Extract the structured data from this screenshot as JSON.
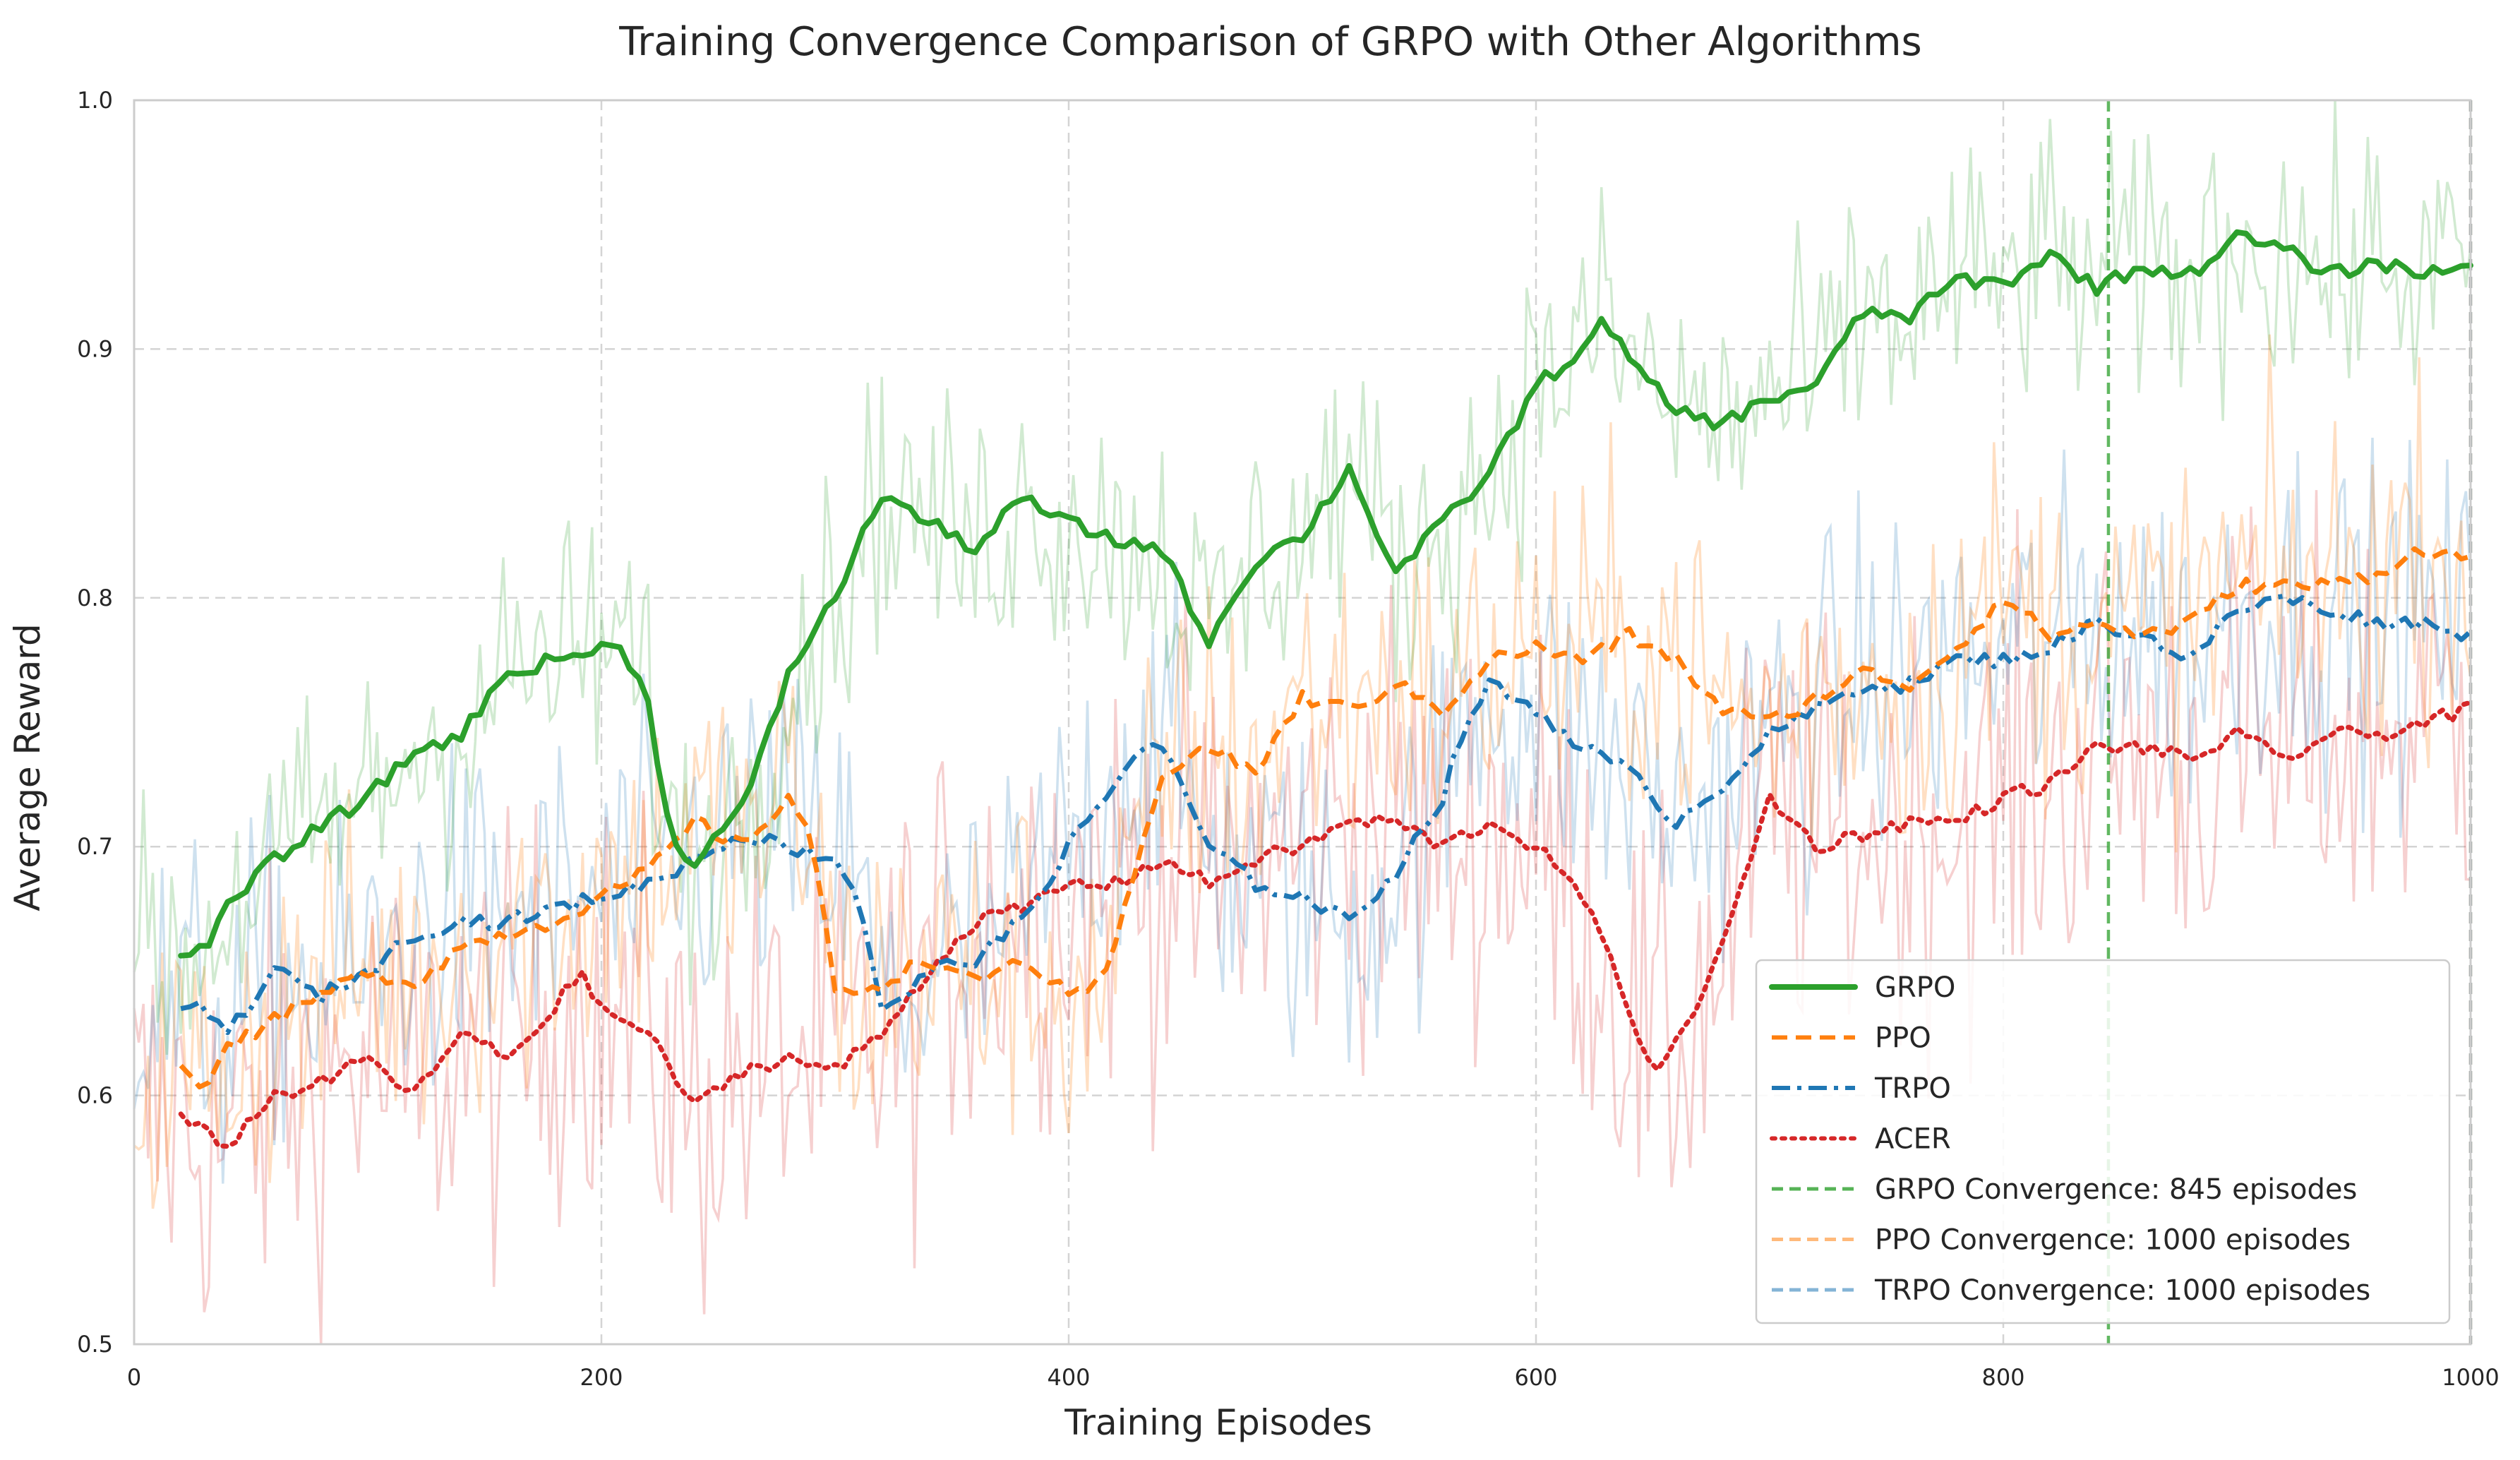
{
  "chart_data": {
    "type": "line",
    "title": "Training Convergence Comparison of GRPO with Other Algorithms",
    "xlabel": "Training Episodes",
    "ylabel": "Average Reward",
    "xlim": [
      0,
      1000
    ],
    "ylim": [
      0.5,
      1.0
    ],
    "xticks": [
      "0",
      "200",
      "400",
      "600",
      "800",
      "1000"
    ],
    "yticks": [
      "0.5",
      "0.6",
      "0.7",
      "0.8",
      "0.9",
      "1.0"
    ],
    "grid": true,
    "legend_position": "bottom-right",
    "series": [
      {
        "name": "GRPO",
        "color": "#2ca02c",
        "style": "solid",
        "x": [
          20,
          30,
          40,
          60,
          80,
          100,
          120,
          140,
          160,
          180,
          200,
          210,
          220,
          230,
          240,
          260,
          270,
          280,
          300,
          320,
          340,
          360,
          380,
          400,
          420,
          440,
          450,
          460,
          480,
          500,
          520,
          540,
          560,
          580,
          600,
          620,
          630,
          640,
          660,
          680,
          700,
          720,
          740,
          760,
          780,
          800,
          820,
          840,
          860,
          880,
          900,
          920,
          940,
          960,
          980,
          1000
        ],
        "y": [
          0.656,
          0.66,
          0.675,
          0.695,
          0.708,
          0.72,
          0.738,
          0.745,
          0.77,
          0.775,
          0.78,
          0.778,
          0.76,
          0.7,
          0.695,
          0.715,
          0.74,
          0.77,
          0.8,
          0.842,
          0.83,
          0.82,
          0.84,
          0.83,
          0.823,
          0.82,
          0.8,
          0.783,
          0.815,
          0.825,
          0.852,
          0.81,
          0.83,
          0.85,
          0.885,
          0.9,
          0.912,
          0.895,
          0.875,
          0.87,
          0.88,
          0.886,
          0.915,
          0.913,
          0.928,
          0.926,
          0.938,
          0.925,
          0.933,
          0.93,
          0.945,
          0.94,
          0.93,
          0.935,
          0.93,
          0.935
        ]
      },
      {
        "name": "PPO",
        "color": "#ff7f0e",
        "style": "dashed",
        "x": [
          20,
          30,
          40,
          60,
          80,
          100,
          120,
          140,
          160,
          180,
          200,
          220,
          240,
          260,
          280,
          290,
          300,
          320,
          340,
          360,
          380,
          400,
          410,
          420,
          430,
          440,
          460,
          480,
          500,
          520,
          540,
          560,
          580,
          600,
          620,
          640,
          660,
          680,
          700,
          720,
          740,
          760,
          780,
          800,
          820,
          840,
          860,
          880,
          900,
          920,
          940,
          960,
          980,
          1000
        ],
        "y": [
          0.61,
          0.605,
          0.62,
          0.63,
          0.64,
          0.65,
          0.645,
          0.66,
          0.665,
          0.67,
          0.68,
          0.69,
          0.71,
          0.7,
          0.72,
          0.705,
          0.64,
          0.645,
          0.655,
          0.645,
          0.655,
          0.64,
          0.64,
          0.66,
          0.695,
          0.73,
          0.74,
          0.73,
          0.76,
          0.755,
          0.765,
          0.755,
          0.775,
          0.78,
          0.775,
          0.785,
          0.775,
          0.755,
          0.75,
          0.76,
          0.77,
          0.765,
          0.78,
          0.8,
          0.785,
          0.79,
          0.785,
          0.79,
          0.805,
          0.805,
          0.805,
          0.81,
          0.82,
          0.815
        ]
      },
      {
        "name": "TRPO",
        "color": "#1f77b4",
        "style": "dashdot",
        "x": [
          20,
          30,
          40,
          60,
          80,
          100,
          120,
          140,
          160,
          180,
          200,
          220,
          240,
          260,
          280,
          300,
          310,
          320,
          330,
          340,
          360,
          380,
          400,
          420,
          430,
          440,
          460,
          480,
          500,
          520,
          540,
          560,
          570,
          580,
          600,
          620,
          640,
          660,
          680,
          700,
          720,
          740,
          760,
          780,
          800,
          820,
          840,
          860,
          880,
          900,
          920,
          940,
          960,
          980,
          1000
        ],
        "y": [
          0.635,
          0.635,
          0.625,
          0.65,
          0.64,
          0.65,
          0.665,
          0.67,
          0.67,
          0.675,
          0.68,
          0.685,
          0.695,
          0.705,
          0.7,
          0.695,
          0.68,
          0.635,
          0.64,
          0.65,
          0.655,
          0.67,
          0.7,
          0.725,
          0.74,
          0.74,
          0.7,
          0.685,
          0.68,
          0.67,
          0.69,
          0.72,
          0.75,
          0.765,
          0.755,
          0.74,
          0.73,
          0.71,
          0.725,
          0.745,
          0.755,
          0.765,
          0.765,
          0.775,
          0.775,
          0.78,
          0.79,
          0.785,
          0.775,
          0.795,
          0.8,
          0.795,
          0.79,
          0.79,
          0.785
        ]
      },
      {
        "name": "ACER",
        "color": "#d62728",
        "style": "dotted",
        "x": [
          20,
          30,
          40,
          60,
          80,
          100,
          120,
          140,
          160,
          180,
          190,
          200,
          220,
          240,
          260,
          280,
          300,
          320,
          340,
          360,
          380,
          400,
          420,
          440,
          460,
          480,
          500,
          520,
          540,
          560,
          580,
          600,
          620,
          640,
          650,
          660,
          680,
          700,
          720,
          740,
          760,
          780,
          800,
          820,
          840,
          860,
          880,
          900,
          920,
          940,
          960,
          980,
          1000
        ],
        "y": [
          0.59,
          0.585,
          0.58,
          0.6,
          0.605,
          0.615,
          0.6,
          0.625,
          0.615,
          0.635,
          0.65,
          0.635,
          0.625,
          0.595,
          0.61,
          0.615,
          0.61,
          0.625,
          0.65,
          0.67,
          0.675,
          0.685,
          0.685,
          0.695,
          0.685,
          0.695,
          0.7,
          0.71,
          0.71,
          0.7,
          0.71,
          0.7,
          0.68,
          0.635,
          0.61,
          0.62,
          0.66,
          0.72,
          0.7,
          0.705,
          0.71,
          0.71,
          0.72,
          0.725,
          0.74,
          0.74,
          0.735,
          0.745,
          0.735,
          0.745,
          0.745,
          0.75,
          0.755
        ]
      }
    ],
    "convergence_lines": [
      {
        "name": "GRPO Convergence: 845 episodes",
        "x": 845,
        "color": "#2ca02c"
      },
      {
        "name": "PPO Convergence: 1000 episodes",
        "x": 1000,
        "color": "#ff7f0e"
      },
      {
        "name": "TRPO Convergence: 1000 episodes",
        "x": 1000,
        "color": "#1f77b4"
      }
    ],
    "legend": [
      "GRPO",
      "PPO",
      "TRPO",
      "ACER",
      "GRPO Convergence: 845 episodes",
      "PPO Convergence: 1000 episodes",
      "TRPO Convergence: 1000 episodes"
    ]
  }
}
